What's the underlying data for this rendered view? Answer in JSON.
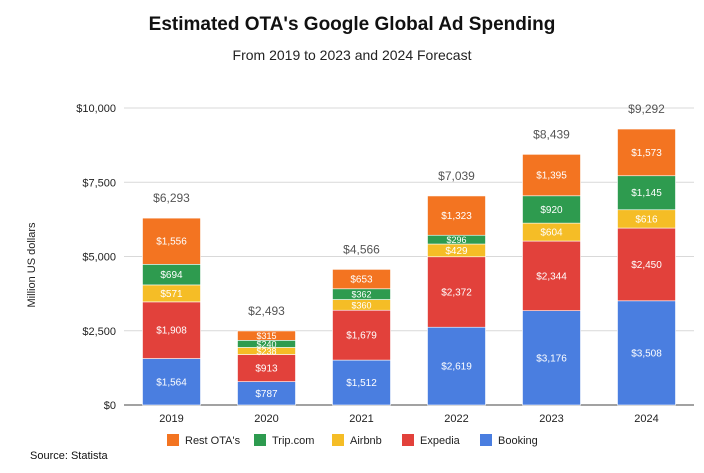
{
  "chart_data": {
    "type": "bar",
    "stacked": true,
    "title": "Estimated OTA's Google Global Ad Spending",
    "subtitle": "From 2019 to 2023 and 2024 Forecast",
    "ylabel": "Million US dollars",
    "xlabel": "",
    "ylim": [
      0,
      10000
    ],
    "yticks": [
      0,
      2500,
      5000,
      7500,
      10000
    ],
    "ytick_labels": [
      "$0",
      "$2,500",
      "$5,000",
      "$7,500",
      "$10,000"
    ],
    "grid": true,
    "legend_position": "bottom",
    "categories": [
      "2019",
      "2020",
      "2021",
      "2022",
      "2023",
      "2024"
    ],
    "series": [
      {
        "name": "Booking",
        "color": "#4a7ee0",
        "values": [
          1564,
          787,
          1512,
          2619,
          3176,
          3508
        ],
        "labels": [
          "$1,564",
          "$787",
          "$1,512",
          "$2,619",
          "$3,176",
          "$3,508"
        ]
      },
      {
        "name": "Expedia",
        "color": "#e2413b",
        "values": [
          1908,
          913,
          1679,
          2372,
          2344,
          2450
        ],
        "labels": [
          "$1,908",
          "$913",
          "$1,679",
          "$2,372",
          "$2,344",
          "$2,450"
        ]
      },
      {
        "name": "Airbnb",
        "color": "#f5bd26",
        "values": [
          571,
          238,
          360,
          429,
          604,
          616
        ],
        "labels": [
          "$571",
          "$238",
          "$360",
          "$429",
          "$604",
          "$616"
        ]
      },
      {
        "name": "Trip.com",
        "color": "#2e9b4f",
        "values": [
          694,
          240,
          362,
          296,
          920,
          1145
        ],
        "labels": [
          "$694",
          "$240",
          "$362",
          "$296",
          "$920",
          "$1,145"
        ]
      },
      {
        "name": "Rest OTA's",
        "color": "#f37421",
        "values": [
          1556,
          315,
          653,
          1323,
          1395,
          1573
        ],
        "labels": [
          "$1,556",
          "$315",
          "$653",
          "$1,323",
          "$1,395",
          "$1,573"
        ]
      }
    ],
    "totals": [
      6293,
      2493,
      4566,
      7039,
      8439,
      9292
    ],
    "total_labels": [
      "$6,293",
      "$2,493",
      "$4,566",
      "$7,039",
      "$8,439",
      "$9,292"
    ],
    "legend_order": [
      "Rest OTA's",
      "Trip.com",
      "Airbnb",
      "Expedia",
      "Booking"
    ]
  },
  "source_text": "Source:  Statista"
}
